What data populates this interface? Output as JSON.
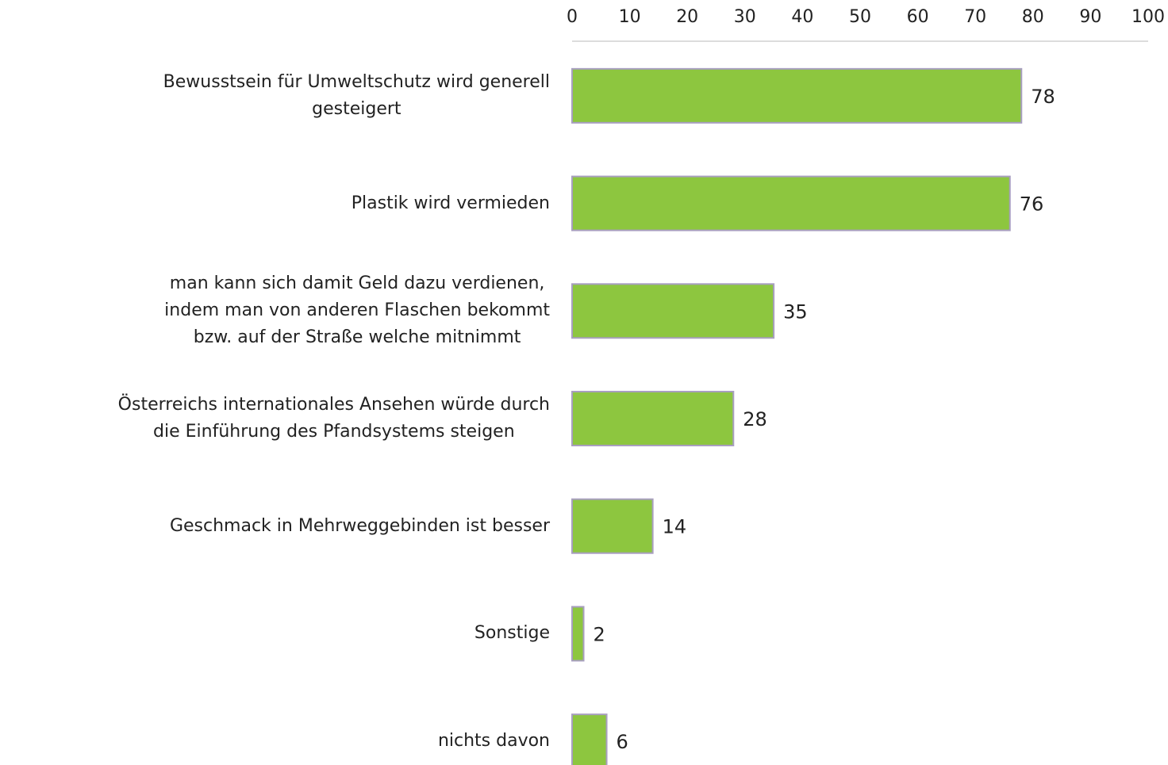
{
  "chart_data": {
    "type": "bar",
    "orientation": "horizontal",
    "categories": [
      "Bewusstsein für Umweltschutz wird generell\ngesteigert",
      "Plastik wird vermieden",
      "man kann sich damit Geld dazu verdienen,\nindem man von anderen Flaschen bekommt\nbzw. auf der Straße welche mitnimmt",
      "Österreichs internationales Ansehen würde durch\ndie Einführung des Pfandsystems steigen",
      "Geschmack in Mehrweggebinden ist besser",
      "Sonstige",
      "nichts davon"
    ],
    "values": [
      78,
      76,
      35,
      28,
      14,
      2,
      6
    ],
    "color": "#8dc63f",
    "xlim": [
      0,
      100
    ],
    "xticks": [
      0,
      10,
      20,
      30,
      40,
      50,
      60,
      70,
      80,
      90,
      100
    ],
    "grid": false
  }
}
